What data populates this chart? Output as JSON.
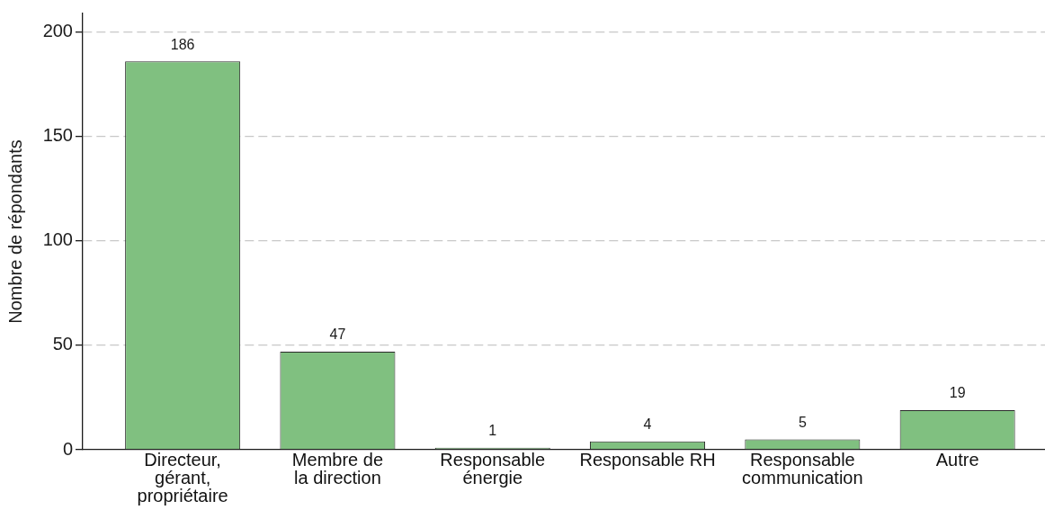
{
  "chart_data": {
    "type": "bar",
    "ylabel": "Nombre de répondants",
    "categories": [
      "Directeur,\ngérant,\npropriétaire",
      "Membre de\nla direction",
      "Responsable\nénergie",
      "Responsable RH",
      "Responsable\ncommunication",
      "Autre"
    ],
    "values": [
      186,
      47,
      1,
      4,
      5,
      19
    ],
    "color": "#80c080",
    "ylim": [
      0,
      209
    ],
    "yticks": [
      0,
      50,
      100,
      150,
      200
    ],
    "grid": "y",
    "data_labels": true
  }
}
